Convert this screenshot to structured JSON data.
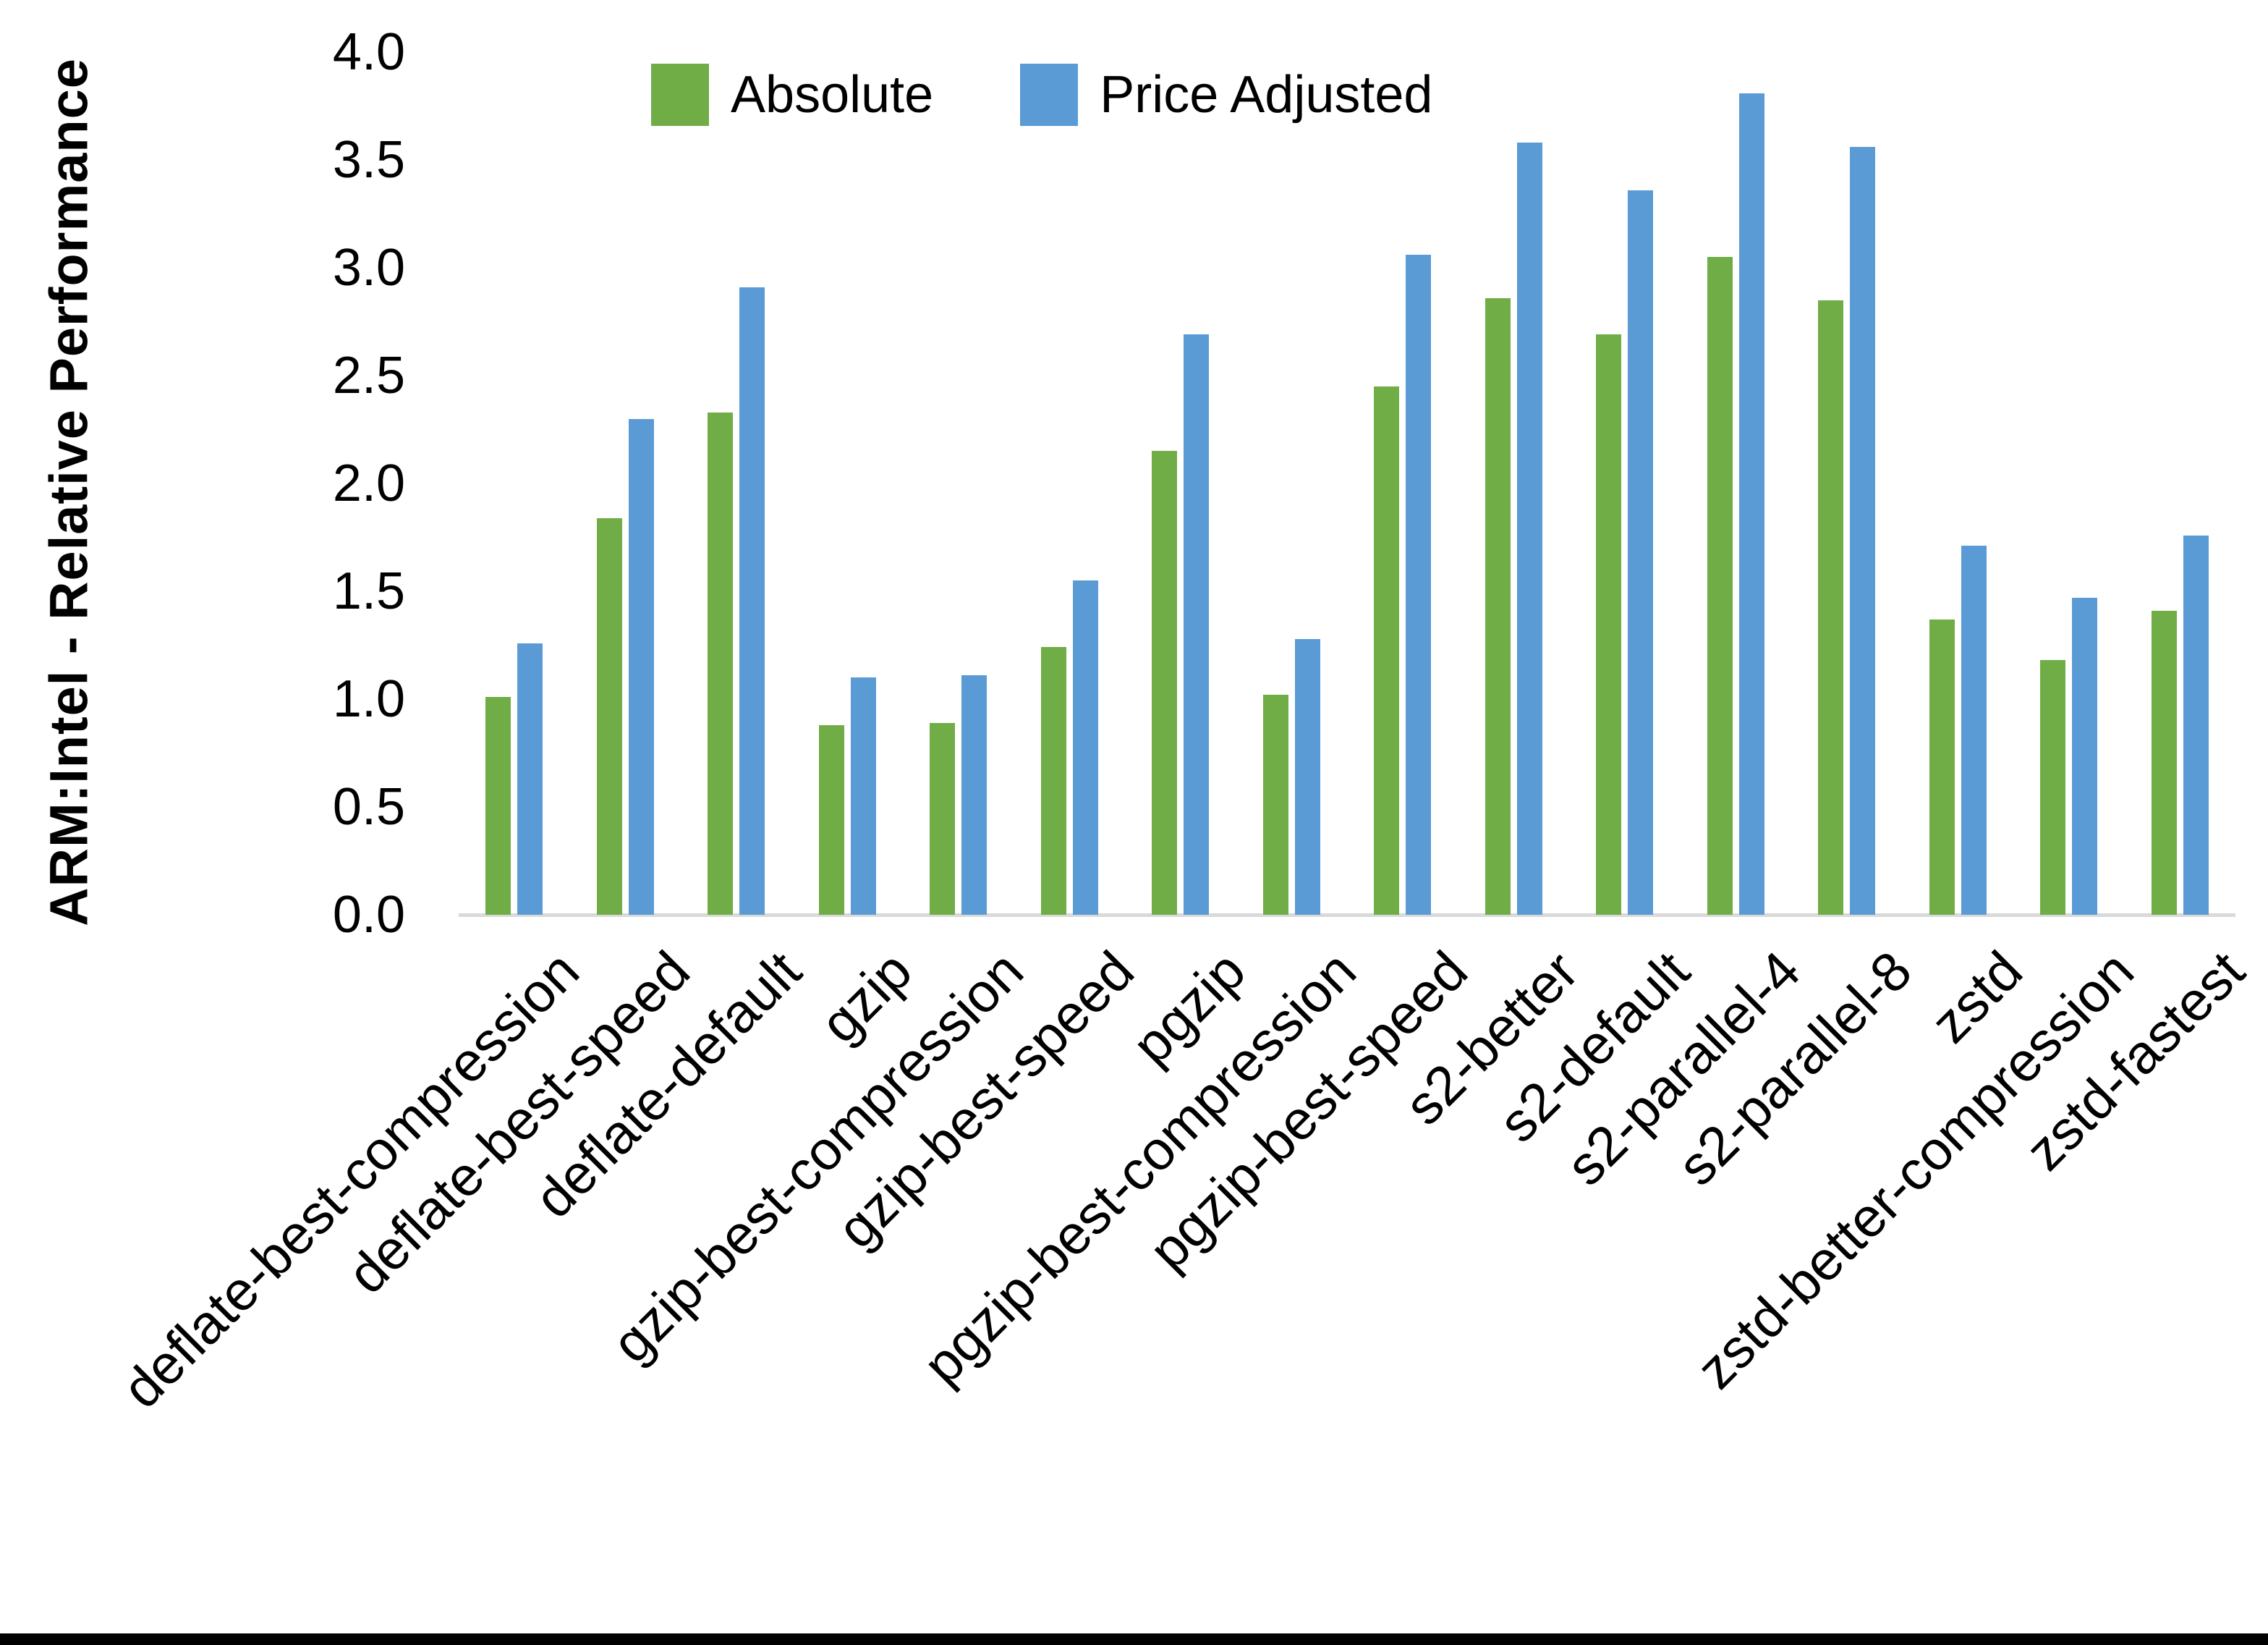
{
  "chart_data": {
    "type": "bar",
    "title": "",
    "xlabel": "",
    "ylabel": "ARM:Intel - Relative Performance",
    "ylim": [
      0.0,
      4.0
    ],
    "ytick_step": 0.5,
    "yticks": [
      "0.0",
      "0.5",
      "1.0",
      "1.5",
      "2.0",
      "2.5",
      "3.0",
      "3.5",
      "4.0"
    ],
    "grid": false,
    "legend_position": "top-center",
    "categories": [
      "deflate-best-compression",
      "deflate-best-speed",
      "deflate-default",
      "gzip",
      "gzip-best-compression",
      "gzip-best-speed",
      "pgzip",
      "pgzip-best-compression",
      "pgzip-best-speed",
      "s2-better",
      "s2-default",
      "s2-parallel-4",
      "s2-parallel-8",
      "zstd",
      "zstd-better-compression",
      "zstd-fastest"
    ],
    "series": [
      {
        "name": "Absolute",
        "color": "#70AD47",
        "values": [
          1.01,
          1.84,
          2.33,
          0.88,
          0.89,
          1.24,
          2.15,
          1.02,
          2.45,
          2.86,
          2.69,
          3.05,
          2.85,
          1.37,
          1.18,
          1.41
        ]
      },
      {
        "name": "Price Adjusted",
        "color": "#5B9BD5",
        "values": [
          1.26,
          2.3,
          2.91,
          1.1,
          1.11,
          1.55,
          2.69,
          1.28,
          3.06,
          3.58,
          3.36,
          3.81,
          3.56,
          1.71,
          1.47,
          1.76
        ]
      }
    ],
    "colors": {
      "axis_line": "#D9D9D9",
      "text": "#000000",
      "background": "#FFFFFF",
      "bottom_border": "#000000"
    }
  }
}
